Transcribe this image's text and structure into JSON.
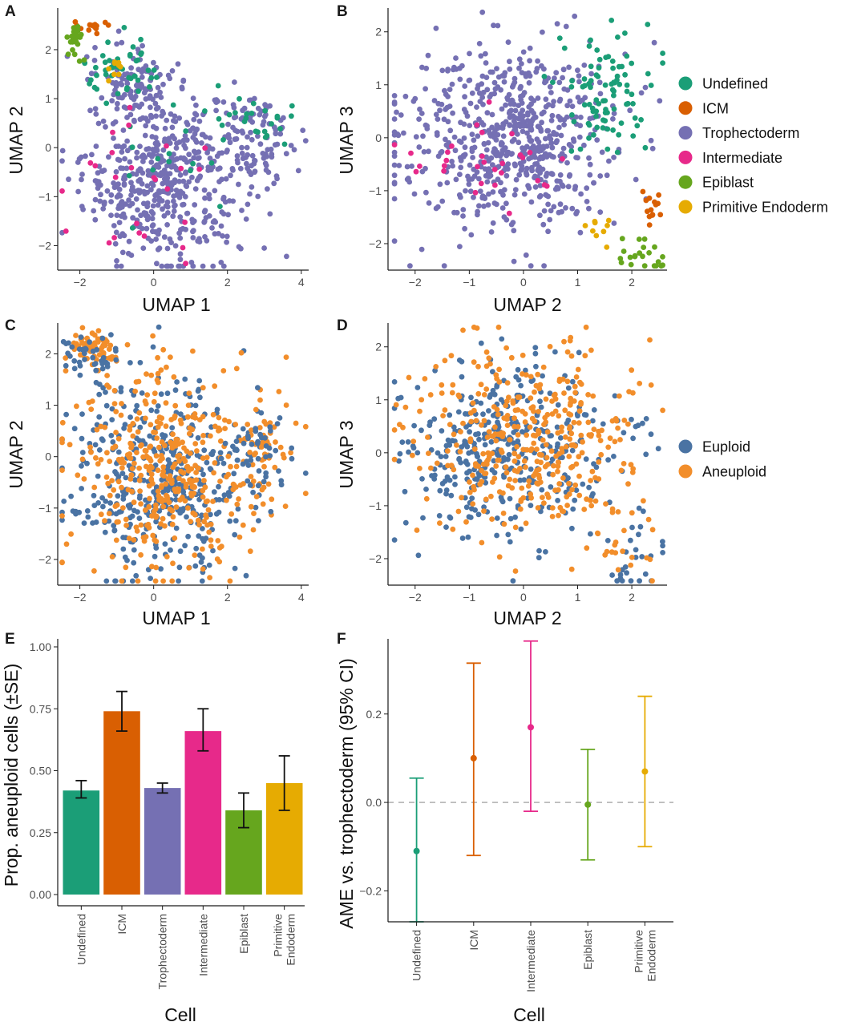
{
  "colors": {
    "Undefined": "#1B9E77",
    "ICM": "#D95F02",
    "Trophectoderm": "#7570B3",
    "Intermediate": "#E7298A",
    "Epiblast": "#66A61E",
    "Primitive Endoderm": "#E6AB02",
    "Euploid": "#4A73A3",
    "Aneuploid": "#F28E2B"
  },
  "legend_celltype": [
    "Undefined",
    "ICM",
    "Trophectoderm",
    "Intermediate",
    "Epiblast",
    "Primitive Endoderm"
  ],
  "legend_ploidy": [
    "Euploid",
    "Aneuploid"
  ],
  "chart_data": [
    {
      "panel": "A",
      "type": "scatter",
      "xlabel": "UMAP 1",
      "ylabel": "UMAP 2",
      "xlim": [
        -2.6,
        4.2
      ],
      "ylim": [
        -2.5,
        2.85
      ],
      "xticks": [
        "−2",
        "0",
        "2",
        "4"
      ],
      "yticks": [
        "−2",
        "−1",
        "0",
        "1",
        "2"
      ],
      "color_by": "cell type",
      "clusters": [
        {
          "group": "Trophectoderm",
          "n": 520,
          "cx": 0.3,
          "cy": -0.6,
          "sx": 1.1,
          "sy": 0.9
        },
        {
          "group": "Trophectoderm",
          "n": 90,
          "cx": -0.6,
          "cy": 1.4,
          "sx": 0.6,
          "sy": 0.35
        },
        {
          "group": "Trophectoderm",
          "n": 90,
          "cx": 2.8,
          "cy": 0.2,
          "sx": 0.6,
          "sy": 0.5
        },
        {
          "group": "Undefined",
          "n": 45,
          "cx": -0.8,
          "cy": 1.5,
          "sx": 0.5,
          "sy": 0.3
        },
        {
          "group": "Undefined",
          "n": 25,
          "cx": 2.8,
          "cy": 0.5,
          "sx": 0.6,
          "sy": 0.35
        },
        {
          "group": "Undefined",
          "n": 15,
          "cx": 0.3,
          "cy": -0.6,
          "sx": 1.0,
          "sy": 0.8
        },
        {
          "group": "ICM",
          "n": 14,
          "cx": -1.7,
          "cy": 2.45,
          "sx": 0.25,
          "sy": 0.07
        },
        {
          "group": "Intermediate",
          "n": 25,
          "cx": -0.3,
          "cy": -0.6,
          "sx": 1.0,
          "sy": 0.9
        },
        {
          "group": "Epiblast",
          "n": 22,
          "cx": -2.15,
          "cy": 2.15,
          "sx": 0.12,
          "sy": 0.18
        },
        {
          "group": "Primitive Endoderm",
          "n": 9,
          "cx": -1.0,
          "cy": 1.5,
          "sx": 0.12,
          "sy": 0.25
        }
      ]
    },
    {
      "panel": "B",
      "type": "scatter",
      "xlabel": "UMAP 2",
      "ylabel": "UMAP 3",
      "xlim": [
        -2.5,
        2.65
      ],
      "ylim": [
        -2.5,
        2.45
      ],
      "xticks": [
        "−2",
        "−1",
        "0",
        "1",
        "2"
      ],
      "yticks": [
        "−2",
        "−1",
        "0",
        "1",
        "2"
      ],
      "color_by": "cell type",
      "clusters": [
        {
          "group": "Trophectoderm",
          "n": 640,
          "cx": -0.3,
          "cy": 0.0,
          "sx": 1.0,
          "sy": 0.85
        },
        {
          "group": "Undefined",
          "n": 90,
          "cx": 1.5,
          "cy": 0.9,
          "sx": 0.45,
          "sy": 0.55
        },
        {
          "group": "Intermediate",
          "n": 30,
          "cx": -0.9,
          "cy": -0.4,
          "sx": 0.7,
          "sy": 0.6
        },
        {
          "group": "ICM",
          "n": 14,
          "cx": 2.4,
          "cy": -1.3,
          "sx": 0.1,
          "sy": 0.15
        },
        {
          "group": "Epiblast",
          "n": 22,
          "cx": 2.1,
          "cy": -2.2,
          "sx": 0.3,
          "sy": 0.2
        },
        {
          "group": "Primitive Endoderm",
          "n": 9,
          "cx": 1.4,
          "cy": -1.7,
          "sx": 0.2,
          "sy": 0.1
        }
      ]
    },
    {
      "panel": "C",
      "type": "scatter",
      "xlabel": "UMAP 1",
      "ylabel": "UMAP 2",
      "xlim": [
        -2.6,
        4.2
      ],
      "ylim": [
        -2.5,
        2.6
      ],
      "xticks": [
        "−2",
        "0",
        "2",
        "4"
      ],
      "yticks": [
        "−2",
        "−1",
        "0",
        "1",
        "2"
      ],
      "color_by": "ploidy",
      "clusters": [
        {
          "group": "Euploid",
          "n": 420,
          "cx": 0.2,
          "cy": -0.5,
          "sx": 1.2,
          "sy": 1.0
        },
        {
          "group": "Aneuploid",
          "n": 380,
          "cx": 0.2,
          "cy": -0.3,
          "sx": 1.2,
          "sy": 1.0
        },
        {
          "group": "Aneuploid",
          "n": 60,
          "cx": -1.6,
          "cy": 2.1,
          "sx": 0.4,
          "sy": 0.2
        },
        {
          "group": "Euploid",
          "n": 40,
          "cx": -1.6,
          "cy": 2.0,
          "sx": 0.4,
          "sy": 0.2
        },
        {
          "group": "Aneuploid",
          "n": 60,
          "cx": 2.9,
          "cy": 0.3,
          "sx": 0.5,
          "sy": 0.5
        },
        {
          "group": "Euploid",
          "n": 50,
          "cx": 2.7,
          "cy": 0.1,
          "sx": 0.5,
          "sy": 0.5
        }
      ]
    },
    {
      "panel": "D",
      "type": "scatter",
      "xlabel": "UMAP 2",
      "ylabel": "UMAP 3",
      "xlim": [
        -2.5,
        2.65
      ],
      "ylim": [
        -2.5,
        2.45
      ],
      "xticks": [
        "−2",
        "−1",
        "0",
        "1",
        "2"
      ],
      "yticks": [
        "−2",
        "−1",
        "0",
        "1",
        "2"
      ],
      "color_by": "ploidy",
      "clusters": [
        {
          "group": "Euploid",
          "n": 380,
          "cx": -0.3,
          "cy": 0.0,
          "sx": 1.0,
          "sy": 0.85
        },
        {
          "group": "Aneuploid",
          "n": 380,
          "cx": 0.0,
          "cy": 0.2,
          "sx": 1.0,
          "sy": 0.9
        },
        {
          "group": "Euploid",
          "n": 25,
          "cx": 2.1,
          "cy": -2.0,
          "sx": 0.35,
          "sy": 0.4
        },
        {
          "group": "Aneuploid",
          "n": 20,
          "cx": 1.9,
          "cy": -1.8,
          "sx": 0.35,
          "sy": 0.4
        }
      ]
    },
    {
      "panel": "E",
      "type": "bar",
      "xlabel": "Cell",
      "ylabel": "Prop. aneuploid cells (±SE)",
      "ylim": [
        0,
        1.0
      ],
      "yticks": [
        "0.00",
        "0.25",
        "0.50",
        "0.75",
        "1.00"
      ],
      "categories": [
        "Undefined",
        "ICM",
        "Trophectoderm",
        "Intermediate",
        "Epiblast",
        "Primitive Endoderm"
      ],
      "values": [
        0.42,
        0.74,
        0.43,
        0.66,
        0.34,
        0.45
      ],
      "se_low": [
        0.39,
        0.66,
        0.41,
        0.58,
        0.27,
        0.34
      ],
      "se_high": [
        0.46,
        0.82,
        0.45,
        0.75,
        0.41,
        0.56
      ]
    },
    {
      "panel": "F",
      "type": "scatter",
      "xlabel": "Cell",
      "ylabel": "AME vs. trophectoderm (95% CI)",
      "ylim": [
        -0.27,
        0.37
      ],
      "yticks": [
        "−0.2",
        "0.0",
        "0.2"
      ],
      "reference_line": 0.0,
      "categories": [
        "Undefined",
        "ICM",
        "Intermediate",
        "Epiblast",
        "Primitive Endoderm"
      ],
      "values": [
        -0.11,
        0.1,
        0.17,
        -0.005,
        0.07
      ],
      "ci_low": [
        -0.27,
        -0.12,
        -0.02,
        -0.13,
        -0.1
      ],
      "ci_high": [
        0.055,
        0.315,
        0.365,
        0.12,
        0.24
      ]
    }
  ]
}
